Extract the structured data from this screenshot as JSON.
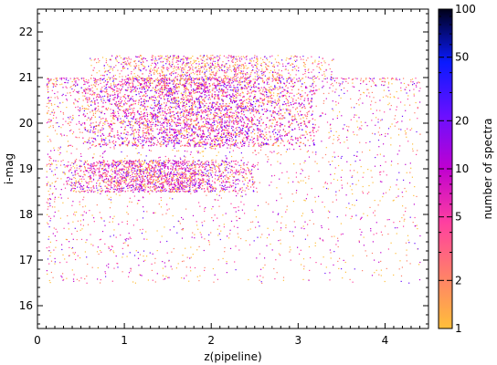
{
  "chart_data": {
    "type": "scatter",
    "title": "",
    "xlabel": "z(pipeline)",
    "ylabel": "i-mag",
    "xlim": [
      0,
      4.5
    ],
    "ylim": [
      15.5,
      22.5
    ],
    "x_ticks": [
      0,
      1,
      2,
      3,
      4
    ],
    "y_ticks": [
      16,
      17,
      18,
      19,
      20,
      21,
      22
    ],
    "grid": false,
    "legend": "none",
    "colorbar": {
      "label": "number of spectra",
      "scale": "log",
      "range": [
        1,
        100
      ],
      "ticks": [
        1,
        2,
        5,
        10,
        20,
        50,
        100
      ],
      "colormap": [
        "#ffbf3a",
        "#ff7f6a",
        "#ff3fa0",
        "#c000d0",
        "#6a10ff",
        "#0a1aff",
        "#000018"
      ]
    },
    "density_regions": [
      {
        "z_range": [
          0.5,
          3.2
        ],
        "imag_range": [
          19.5,
          21.0
        ],
        "density": "highest"
      },
      {
        "z_range": [
          0.3,
          2.5
        ],
        "imag_range": [
          18.5,
          19.2
        ],
        "density": "high"
      },
      {
        "z_range": [
          0.6,
          3.4
        ],
        "imag_range": [
          21.0,
          21.5
        ],
        "density": "moderate"
      },
      {
        "z_range": [
          0.1,
          4.4
        ],
        "imag_range": [
          16.5,
          21.0
        ],
        "density": "sparse"
      }
    ]
  }
}
